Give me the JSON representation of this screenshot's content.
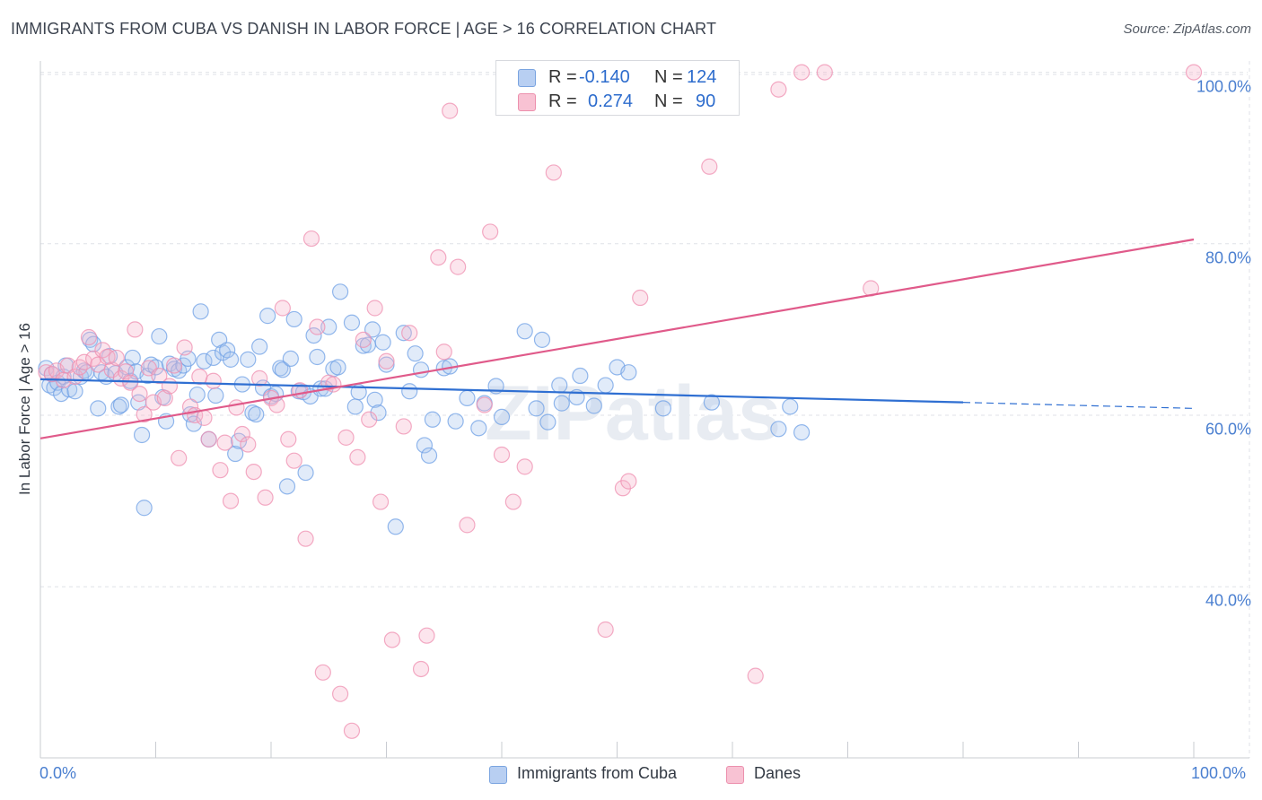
{
  "chart_data": {
    "type": "scatter",
    "title": "IMMIGRANTS FROM CUBA VS DANISH IN LABOR FORCE | AGE > 16 CORRELATION CHART",
    "source": "Source: ZipAtlas.com",
    "xlabel": "",
    "ylabel": "In Labor Force | Age > 16",
    "xlim": [
      0,
      100
    ],
    "ylim": [
      20,
      101
    ],
    "x_tick_labels": [
      "0.0%",
      "100.0%"
    ],
    "y_ticks": [
      40,
      60,
      80,
      100
    ],
    "y_tick_labels": [
      "40.0%",
      "60.0%",
      "80.0%",
      "100.0%"
    ],
    "watermark": "ZIPatlas",
    "legend": {
      "r_label": "R =",
      "n_label": "N =",
      "entries": [
        {
          "name": "Immigrants from Cuba",
          "r": "-0.140",
          "n": "124",
          "color": "#6fa0e6"
        },
        {
          "name": "Danes",
          "r": "0.274",
          "n": "90",
          "color": "#ef8fb0"
        }
      ]
    },
    "series": [
      {
        "name": "Immigrants from Cuba",
        "color": "#6fa0e6",
        "line_color": "#2f6fd2",
        "trend": {
          "x0": 0,
          "y0": 64.2,
          "x1": 80,
          "y1": 61.5,
          "x_dash_end": 100,
          "y_dash_end": 60.8
        },
        "points": [
          [
            0.5,
            65.5
          ],
          [
            0.8,
            63.5
          ],
          [
            1,
            64.8
          ],
          [
            1.2,
            63.2
          ],
          [
            1.5,
            63.8
          ],
          [
            1.8,
            62.5
          ],
          [
            2,
            64.5
          ],
          [
            2.2,
            65.8
          ],
          [
            2.5,
            63
          ],
          [
            3,
            62.8
          ],
          [
            3.5,
            64.5
          ],
          [
            3.8,
            65.2
          ],
          [
            4,
            65
          ],
          [
            4.3,
            68.8
          ],
          [
            4.6,
            68.3
          ],
          [
            5,
            60.8
          ],
          [
            5.3,
            65
          ],
          [
            5.7,
            64.5
          ],
          [
            6,
            66.9
          ],
          [
            6.5,
            64.9
          ],
          [
            6.8,
            61
          ],
          [
            7,
            61.2
          ],
          [
            7.5,
            65.6
          ],
          [
            7.8,
            64
          ],
          [
            8,
            66.7
          ],
          [
            8.3,
            65.1
          ],
          [
            8.5,
            61.5
          ],
          [
            8.8,
            57.7
          ],
          [
            9,
            49.2
          ],
          [
            9.3,
            64.6
          ],
          [
            9.6,
            65.9
          ],
          [
            10,
            65.6
          ],
          [
            10.3,
            69.2
          ],
          [
            10.6,
            62.1
          ],
          [
            10.9,
            59.3
          ],
          [
            11.2,
            66
          ],
          [
            11.6,
            65.4
          ],
          [
            12,
            65.2
          ],
          [
            12.4,
            65.8
          ],
          [
            12.8,
            66.6
          ],
          [
            13,
            60.1
          ],
          [
            13.3,
            59
          ],
          [
            13.6,
            62.4
          ],
          [
            13.9,
            72.1
          ],
          [
            14.2,
            66.3
          ],
          [
            14.6,
            57.2
          ],
          [
            15,
            66.7
          ],
          [
            15.2,
            62.3
          ],
          [
            15.5,
            68.8
          ],
          [
            15.8,
            67.3
          ],
          [
            16.2,
            67.6
          ],
          [
            16.5,
            66.5
          ],
          [
            16.9,
            55.5
          ],
          [
            17.2,
            57
          ],
          [
            17.5,
            63.6
          ],
          [
            18,
            66.5
          ],
          [
            18.4,
            60.3
          ],
          [
            18.7,
            60.1
          ],
          [
            19,
            68
          ],
          [
            19.3,
            63.2
          ],
          [
            19.7,
            71.6
          ],
          [
            20,
            62.2
          ],
          [
            20.4,
            62.5
          ],
          [
            20.8,
            65.5
          ],
          [
            21,
            65.3
          ],
          [
            21.4,
            51.7
          ],
          [
            21.7,
            66.6
          ],
          [
            22,
            71.2
          ],
          [
            22.4,
            62.8
          ],
          [
            22.8,
            62.7
          ],
          [
            23,
            53.3
          ],
          [
            23.4,
            62.2
          ],
          [
            23.7,
            69.3
          ],
          [
            24,
            66.8
          ],
          [
            24.3,
            63.1
          ],
          [
            24.7,
            63.1
          ],
          [
            25,
            70.3
          ],
          [
            25.4,
            65.4
          ],
          [
            25.8,
            65.6
          ],
          [
            26,
            74.4
          ],
          [
            27,
            70.8
          ],
          [
            27.3,
            61
          ],
          [
            27.6,
            62.7
          ],
          [
            28,
            68.1
          ],
          [
            28.4,
            68.2
          ],
          [
            28.8,
            70
          ],
          [
            29,
            61.8
          ],
          [
            29.3,
            60.3
          ],
          [
            29.7,
            68.5
          ],
          [
            30,
            65.9
          ],
          [
            30.8,
            47
          ],
          [
            31.5,
            69.6
          ],
          [
            32,
            62.8
          ],
          [
            32.5,
            67.2
          ],
          [
            33,
            65.3
          ],
          [
            33.3,
            56.5
          ],
          [
            33.7,
            55.3
          ],
          [
            34,
            59.5
          ],
          [
            35,
            65.5
          ],
          [
            35.5,
            65.7
          ],
          [
            36,
            59.3
          ],
          [
            37,
            62
          ],
          [
            38,
            58.5
          ],
          [
            38.5,
            61.4
          ],
          [
            39.5,
            63.4
          ],
          [
            40,
            59.8
          ],
          [
            42,
            69.8
          ],
          [
            43,
            60.8
          ],
          [
            43.5,
            68.8
          ],
          [
            44,
            59.2
          ],
          [
            45,
            63.5
          ],
          [
            45.2,
            61.4
          ],
          [
            46.5,
            62.1
          ],
          [
            46.8,
            64.6
          ],
          [
            48,
            61.1
          ],
          [
            49,
            63.5
          ],
          [
            50,
            65.6
          ],
          [
            51,
            65
          ],
          [
            54,
            60.8
          ],
          [
            58.2,
            61.5
          ],
          [
            64,
            58.4
          ],
          [
            65,
            61
          ],
          [
            66,
            58
          ]
        ]
      },
      {
        "name": "Danes",
        "color": "#ef8fb0",
        "line_color": "#e05a8a",
        "trend": {
          "x0": 0,
          "y0": 57.3,
          "x1": 100,
          "y1": 80.5
        },
        "points": [
          [
            0.5,
            65
          ],
          [
            1,
            64.8
          ],
          [
            1.4,
            65.2
          ],
          [
            2,
            64.1
          ],
          [
            2.4,
            65.8
          ],
          [
            3,
            64.5
          ],
          [
            3.4,
            65.6
          ],
          [
            3.8,
            66.2
          ],
          [
            4.2,
            69.1
          ],
          [
            4.6,
            66.6
          ],
          [
            5,
            65.9
          ],
          [
            5.4,
            67.6
          ],
          [
            5.8,
            66.8
          ],
          [
            6.2,
            65.3
          ],
          [
            6.6,
            66.7
          ],
          [
            7,
            64.3
          ],
          [
            7.4,
            65.1
          ],
          [
            7.8,
            63.8
          ],
          [
            8.2,
            70
          ],
          [
            8.6,
            62.5
          ],
          [
            9,
            60.1
          ],
          [
            9.4,
            65.5
          ],
          [
            9.8,
            61.5
          ],
          [
            10.3,
            64.6
          ],
          [
            10.8,
            62
          ],
          [
            11.2,
            63.4
          ],
          [
            11.6,
            65.8
          ],
          [
            12,
            55
          ],
          [
            12.5,
            67.9
          ],
          [
            13,
            61
          ],
          [
            13.4,
            60
          ],
          [
            13.8,
            64.5
          ],
          [
            14.2,
            59.7
          ],
          [
            14.6,
            57.2
          ],
          [
            15,
            64
          ],
          [
            15.6,
            53.6
          ],
          [
            16,
            56.8
          ],
          [
            16.5,
            50
          ],
          [
            17,
            60.9
          ],
          [
            17.5,
            57.8
          ],
          [
            18,
            56.6
          ],
          [
            18.5,
            53.4
          ],
          [
            19,
            64.3
          ],
          [
            19.5,
            50.4
          ],
          [
            20,
            62
          ],
          [
            20.5,
            61.2
          ],
          [
            21,
            72.5
          ],
          [
            21.5,
            57.2
          ],
          [
            22,
            54.7
          ],
          [
            22.5,
            62.9
          ],
          [
            23,
            45.6
          ],
          [
            23.5,
            80.6
          ],
          [
            24,
            70.3
          ],
          [
            24.5,
            30
          ],
          [
            25,
            63.8
          ],
          [
            25.4,
            63.6
          ],
          [
            26,
            27.5
          ],
          [
            26.5,
            57.4
          ],
          [
            27,
            23.2
          ],
          [
            27.5,
            55.1
          ],
          [
            28,
            68.8
          ],
          [
            28.5,
            59.5
          ],
          [
            29,
            72.5
          ],
          [
            29.5,
            49.9
          ],
          [
            30,
            66.3
          ],
          [
            30.5,
            33.8
          ],
          [
            31.5,
            58.7
          ],
          [
            32,
            69.6
          ],
          [
            33,
            30.4
          ],
          [
            33.5,
            34.3
          ],
          [
            34.5,
            78.4
          ],
          [
            35,
            67.4
          ],
          [
            35.5,
            95.5
          ],
          [
            36.2,
            77.3
          ],
          [
            37,
            47.2
          ],
          [
            38.5,
            61.2
          ],
          [
            39,
            81.4
          ],
          [
            40,
            55.4
          ],
          [
            41,
            49.9
          ],
          [
            42,
            54
          ],
          [
            44.5,
            88.3
          ],
          [
            49,
            35
          ],
          [
            50.5,
            51.5
          ],
          [
            51,
            52.3
          ],
          [
            52,
            73.7
          ],
          [
            58,
            89
          ],
          [
            62,
            29.6
          ],
          [
            64,
            98
          ],
          [
            66,
            100
          ],
          [
            68,
            100
          ],
          [
            72,
            74.8
          ],
          [
            100,
            100
          ]
        ]
      }
    ]
  }
}
